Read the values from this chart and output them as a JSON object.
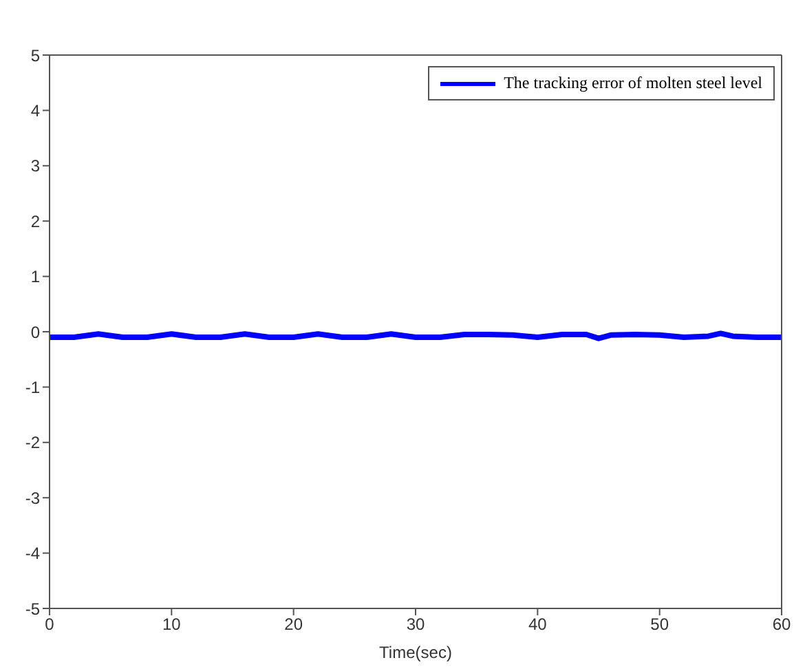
{
  "chart_data": {
    "type": "line",
    "xlabel": "Time(sec)",
    "series": [
      {
        "name": "The tracking error of molten steel level",
        "color": "#0000ff",
        "x": [
          0,
          2,
          4,
          6,
          8,
          10,
          12,
          14,
          16,
          18,
          20,
          22,
          24,
          26,
          28,
          30,
          32,
          34,
          36,
          38,
          40,
          42,
          44,
          45,
          46,
          48,
          50,
          52,
          54,
          55,
          56,
          58,
          60
        ],
        "values": [
          -0.1,
          -0.1,
          -0.04,
          -0.1,
          -0.1,
          -0.04,
          -0.1,
          -0.1,
          -0.04,
          -0.1,
          -0.1,
          -0.04,
          -0.1,
          -0.1,
          -0.04,
          -0.1,
          -0.1,
          -0.05,
          -0.05,
          -0.06,
          -0.1,
          -0.05,
          -0.05,
          -0.12,
          -0.06,
          -0.05,
          -0.06,
          -0.1,
          -0.08,
          -0.03,
          -0.08,
          -0.1,
          -0.1
        ]
      }
    ],
    "xlim": [
      0,
      60
    ],
    "xticks": [
      0,
      10,
      20,
      30,
      40,
      50,
      60
    ],
    "ylim": [
      -5,
      5
    ],
    "yticks": [
      -5,
      -4,
      -3,
      -2,
      -1,
      0,
      1,
      2,
      3,
      4,
      5
    ],
    "legend": "top right",
    "line_style": "solid",
    "marker": "none"
  }
}
